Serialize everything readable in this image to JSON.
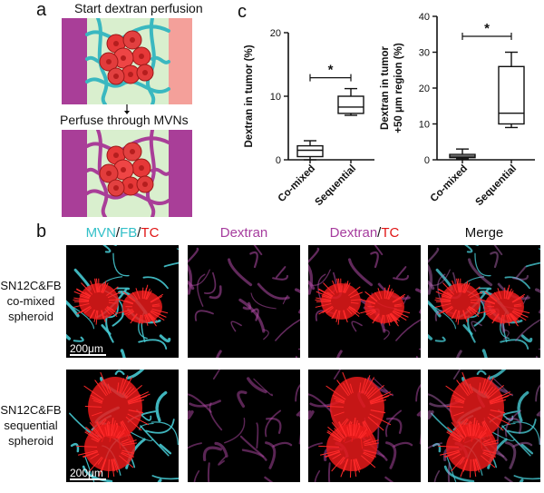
{
  "panel_labels": {
    "a": "a",
    "b": "b",
    "c": "c"
  },
  "schematic": {
    "step1": "Start dextran perfusion",
    "step2": "Perfuse through MVNs"
  },
  "images": {
    "col_titles": [
      [
        {
          "text": "MVN",
          "color": "#33c0c8"
        },
        {
          "text": "/",
          "color": "#111111"
        },
        {
          "text": "FB",
          "color": "#33c0c8"
        },
        {
          "text": "/",
          "color": "#111111"
        },
        {
          "text": "TC",
          "color": "#e01515"
        }
      ],
      [
        {
          "text": "Dextran",
          "color": "#a63c9e"
        }
      ],
      [
        {
          "text": "Dextran",
          "color": "#a63c9e"
        },
        {
          "text": "/",
          "color": "#111111"
        },
        {
          "text": "TC",
          "color": "#e01515"
        }
      ],
      [
        {
          "text": "Merge",
          "color": "#111111"
        }
      ]
    ],
    "rows": [
      {
        "label_lines": [
          "SN12C&FB",
          "co-mixed",
          "spheroid"
        ],
        "scale_bar": "200μm"
      },
      {
        "label_lines": [
          "SN12C&FB",
          "sequential",
          "spheroid"
        ],
        "scale_bar": "200μm"
      }
    ]
  },
  "chart_data": [
    {
      "type": "box",
      "ylabel": "Dextran in tumor (%)",
      "ylim": [
        0,
        20
      ],
      "yticks": [
        0,
        10,
        20
      ],
      "categories": [
        "Co-mixed",
        "Sequential"
      ],
      "boxes": [
        {
          "min": 0.0,
          "q1": 0.5,
          "median": 1.5,
          "q3": 2.2,
          "max": 3.0
        },
        {
          "min": 7.0,
          "q1": 7.3,
          "median": 8.3,
          "q3": 10.0,
          "max": 11.2
        }
      ],
      "significance": "*"
    },
    {
      "type": "box",
      "ylabel": "Dextran in tumor\n+50 μm region (%)",
      "ylim": [
        0,
        40
      ],
      "yticks": [
        0,
        10,
        20,
        30,
        40
      ],
      "categories": [
        "Co-mixed",
        "Sequential"
      ],
      "boxes": [
        {
          "min": 0.3,
          "q1": 0.6,
          "median": 1.0,
          "q3": 1.5,
          "max": 3.0
        },
        {
          "min": 9.0,
          "q1": 10.0,
          "median": 13.0,
          "q3": 26.0,
          "max": 30.0
        }
      ],
      "significance": "*"
    }
  ]
}
